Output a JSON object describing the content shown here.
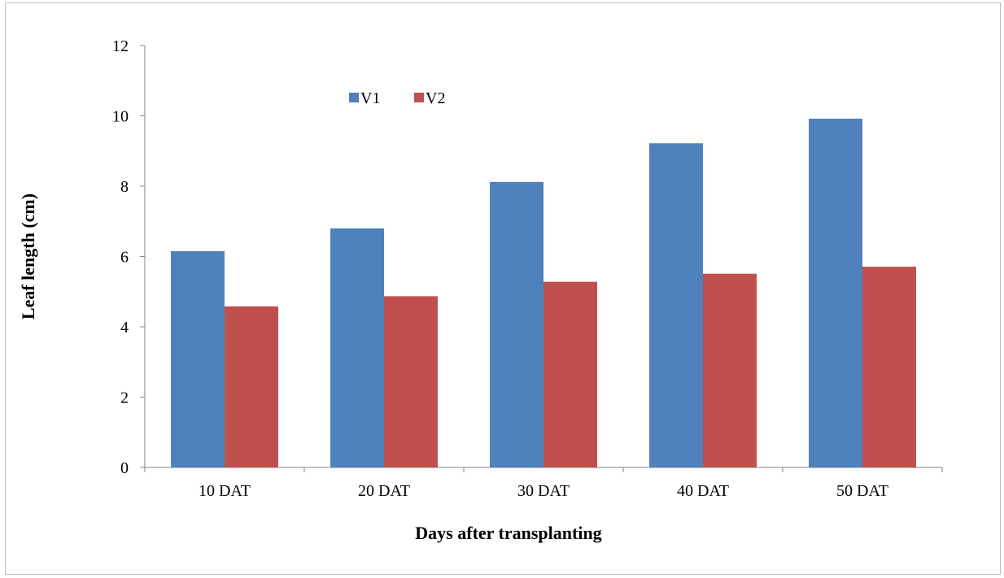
{
  "chart_data": {
    "type": "bar",
    "categories": [
      "10 DAT",
      "20 DAT",
      "30 DAT",
      "40 DAT",
      "50 DAT"
    ],
    "series": [
      {
        "name": "V1",
        "color": "#4f81bd",
        "values": [
          6.15,
          6.8,
          8.12,
          9.22,
          9.92
        ]
      },
      {
        "name": "V2",
        "color": "#c0504d",
        "values": [
          4.58,
          4.87,
          5.28,
          5.51,
          5.71
        ]
      }
    ],
    "title": "",
    "xlabel": "Days after transplanting",
    "ylabel": "Leaf length (cm)",
    "ylim": [
      0,
      12
    ],
    "yticks": [
      "0",
      "2",
      "4",
      "6",
      "8",
      "10",
      "12"
    ],
    "grid": false,
    "legend_position": "top-left inside plot"
  }
}
